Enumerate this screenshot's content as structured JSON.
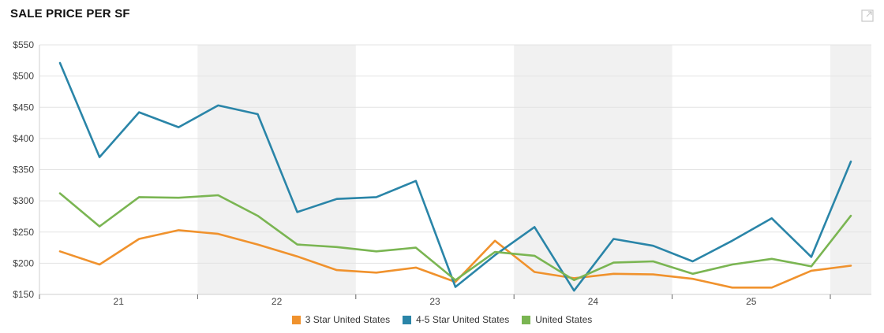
{
  "page": {
    "title": "SALE PRICE PER SF"
  },
  "icons": {
    "expand": "expand-icon"
  },
  "chart_data": {
    "type": "line",
    "title": "SALE PRICE PER SF",
    "xlabel": "",
    "ylabel": "",
    "ylim": [
      150,
      550
    ],
    "y_ticks": [
      150,
      200,
      250,
      300,
      350,
      400,
      450,
      500,
      550
    ],
    "y_tick_labels": [
      "$150",
      "$200",
      "$250",
      "$300",
      "$350",
      "$400",
      "$450",
      "$500",
      "$550"
    ],
    "x_ticks": [
      "21",
      "22",
      "23",
      "24",
      "25"
    ],
    "quarters_per_year": 4,
    "first_quarter": "2020 Q3",
    "grid": true,
    "legend_position": "bottom",
    "shaded_bands": [
      "22",
      "24",
      "26"
    ],
    "series": [
      {
        "name": "3 Star United States",
        "color": "#F0922D",
        "values": [
          219,
          198,
          239,
          253,
          247,
          230,
          211,
          189,
          185,
          193,
          170,
          236,
          186,
          176,
          183,
          182,
          175,
          161,
          161,
          188,
          196
        ]
      },
      {
        "name": "4-5 Star United States",
        "color": "#2A85A8",
        "values": [
          521,
          370,
          442,
          418,
          453,
          439,
          282,
          303,
          306,
          332,
          162,
          213,
          258,
          156,
          239,
          228,
          203,
          236,
          272,
          210,
          363
        ]
      },
      {
        "name": "United States",
        "color": "#7AB552",
        "values": [
          312,
          259,
          306,
          305,
          309,
          276,
          230,
          226,
          219,
          225,
          173,
          218,
          212,
          173,
          201,
          203,
          183,
          198,
          207,
          195,
          276
        ]
      }
    ]
  }
}
